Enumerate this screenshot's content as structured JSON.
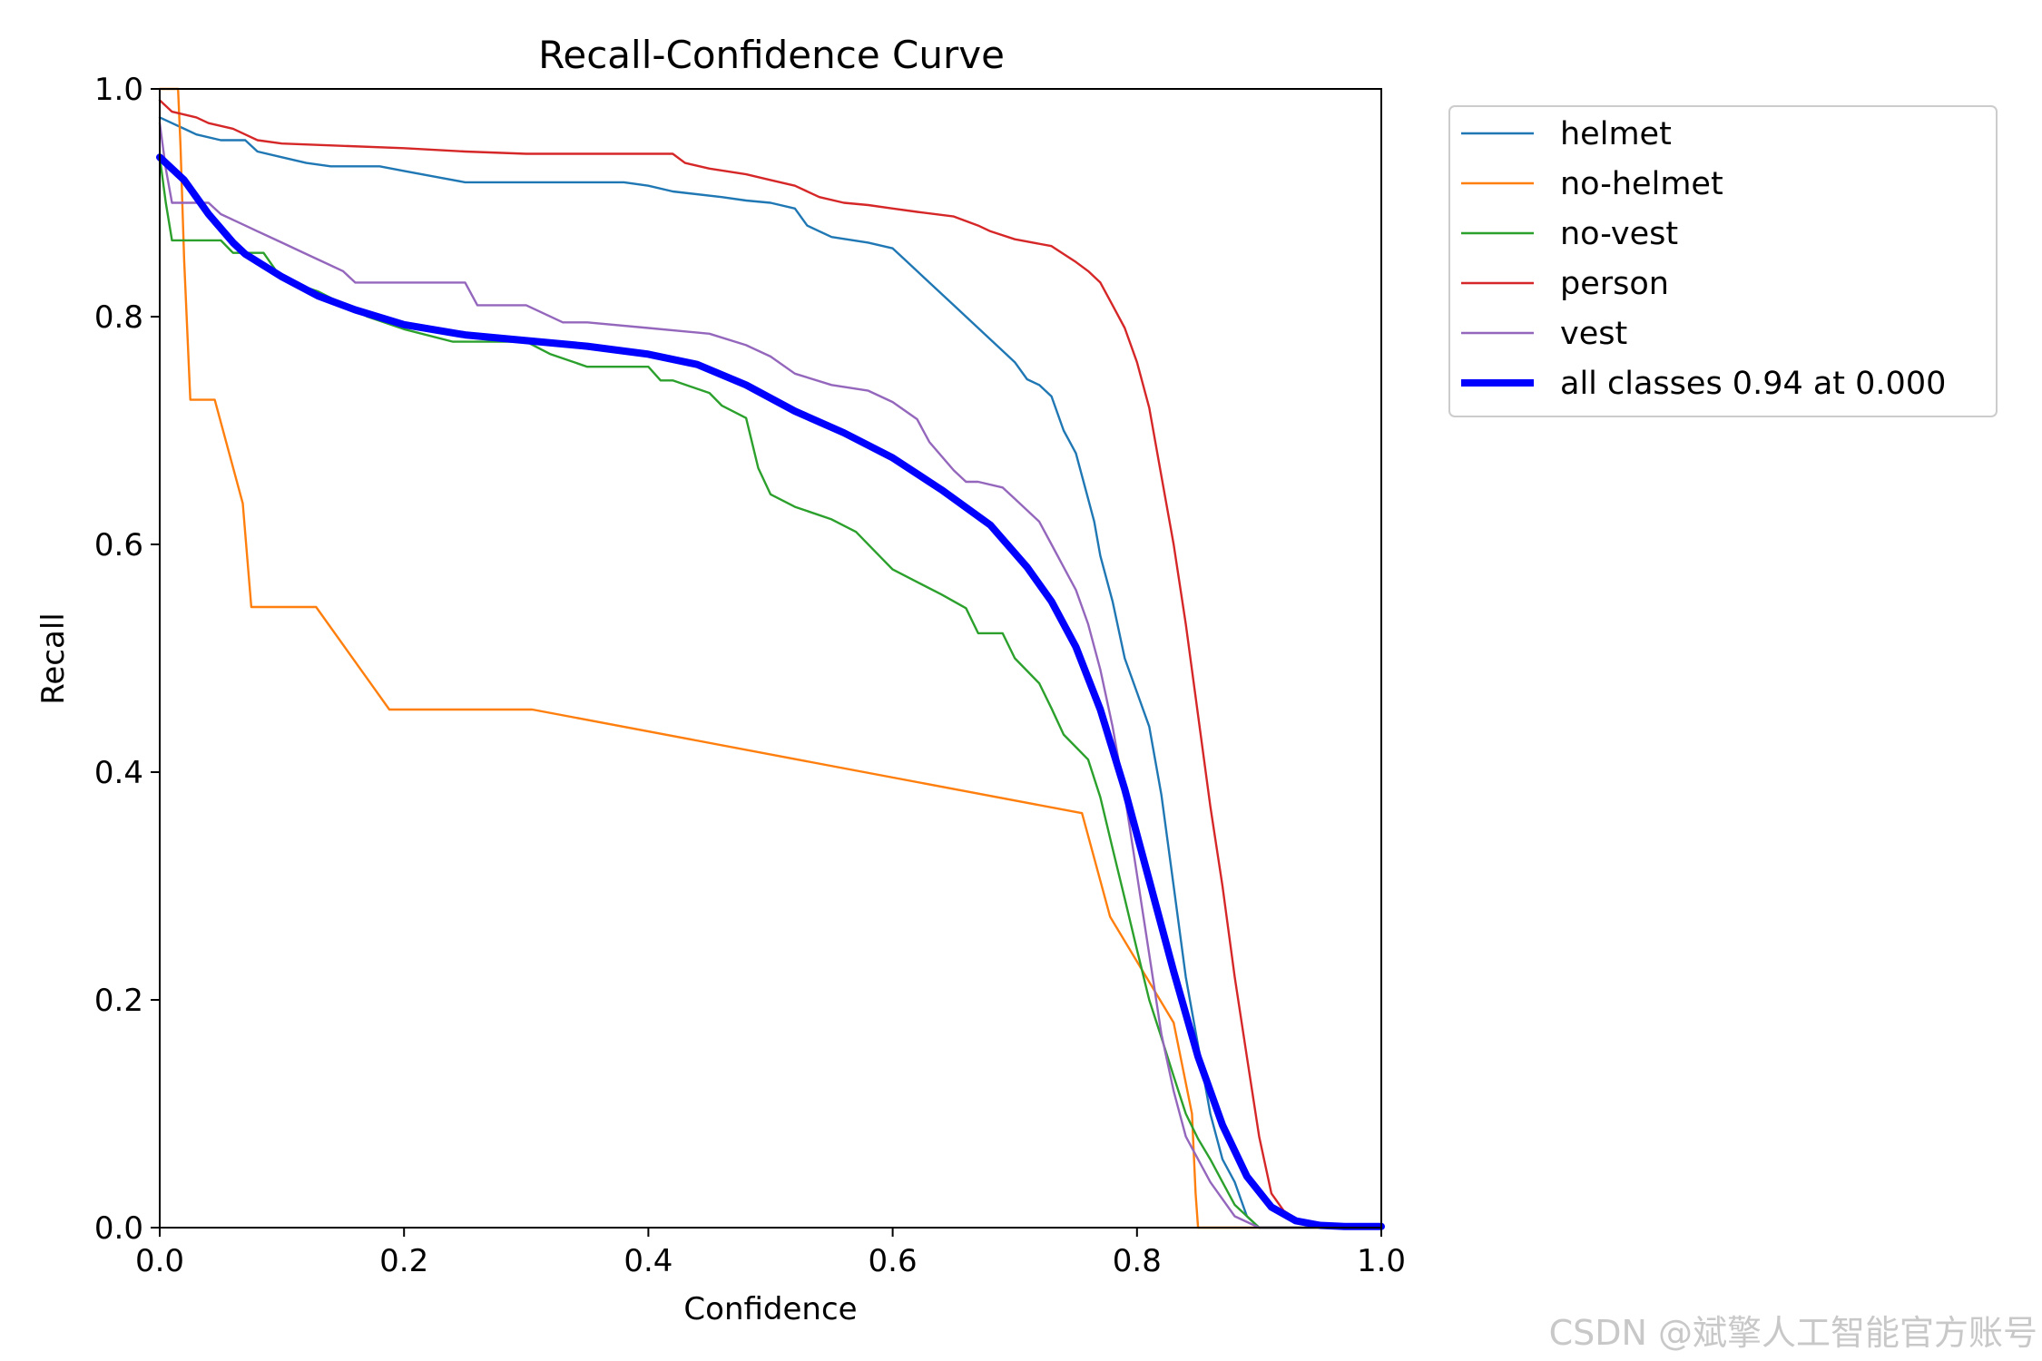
{
  "chart_data": {
    "type": "line",
    "title": "Recall-Confidence Curve",
    "xlabel": "Confidence",
    "ylabel": "Recall",
    "xlim": [
      0,
      1
    ],
    "ylim": [
      0,
      1
    ],
    "xticks": [
      "0.0",
      "0.2",
      "0.4",
      "0.6",
      "0.8",
      "1.0"
    ],
    "yticks": [
      "0.0",
      "0.2",
      "0.4",
      "0.6",
      "0.8",
      "1.0"
    ],
    "grid": false,
    "legend_position": "outside-top-right",
    "series": [
      {
        "name": "helmet",
        "color": "#1f77b4",
        "width": "thin",
        "x": [
          0,
          0.01,
          0.02,
          0.03,
          0.05,
          0.07,
          0.08,
          0.1,
          0.12,
          0.14,
          0.18,
          0.2,
          0.23,
          0.25,
          0.3,
          0.38,
          0.4,
          0.42,
          0.46,
          0.48,
          0.5,
          0.52,
          0.53,
          0.54,
          0.55,
          0.58,
          0.6,
          0.61,
          0.62,
          0.63,
          0.65,
          0.66,
          0.67,
          0.68,
          0.7,
          0.71,
          0.72,
          0.73,
          0.74,
          0.745,
          0.75,
          0.76,
          0.765,
          0.77,
          0.78,
          0.79,
          0.8,
          0.81,
          0.82,
          0.83,
          0.84,
          0.85,
          0.86,
          0.87,
          0.88,
          0.89,
          0.9,
          0.92,
          0.95,
          1.0
        ],
        "y": [
          0.975,
          0.97,
          0.965,
          0.96,
          0.955,
          0.955,
          0.945,
          0.94,
          0.935,
          0.932,
          0.932,
          0.928,
          0.922,
          0.918,
          0.918,
          0.918,
          0.915,
          0.91,
          0.905,
          0.902,
          0.9,
          0.895,
          0.88,
          0.875,
          0.87,
          0.865,
          0.86,
          0.85,
          0.84,
          0.83,
          0.81,
          0.8,
          0.79,
          0.78,
          0.76,
          0.745,
          0.74,
          0.73,
          0.7,
          0.69,
          0.68,
          0.64,
          0.62,
          0.59,
          0.55,
          0.5,
          0.47,
          0.44,
          0.38,
          0.3,
          0.22,
          0.16,
          0.1,
          0.06,
          0.04,
          0.01,
          0.0,
          0.0,
          0.0,
          0.0
        ]
      },
      {
        "name": "no-helmet",
        "color": "#ff7f0e",
        "width": "thin",
        "x": [
          0,
          0.01,
          0.015,
          0.017,
          0.02,
          0.025,
          0.045,
          0.068,
          0.075,
          0.128,
          0.188,
          0.305,
          0.755,
          0.778,
          0.83,
          0.845,
          0.848,
          0.85,
          1.0
        ],
        "y": [
          1.0,
          1.0,
          1.0,
          0.95,
          0.85,
          0.727,
          0.727,
          0.636,
          0.545,
          0.545,
          0.455,
          0.455,
          0.364,
          0.273,
          0.18,
          0.1,
          0.03,
          0.0,
          0.0
        ]
      },
      {
        "name": "no-vest",
        "color": "#2ca02c",
        "width": "thin",
        "x": [
          0,
          0.005,
          0.01,
          0.03,
          0.05,
          0.06,
          0.085,
          0.1,
          0.13,
          0.15,
          0.17,
          0.2,
          0.24,
          0.25,
          0.3,
          0.32,
          0.35,
          0.38,
          0.4,
          0.41,
          0.42,
          0.45,
          0.46,
          0.48,
          0.49,
          0.5,
          0.52,
          0.55,
          0.57,
          0.59,
          0.6,
          0.62,
          0.64,
          0.66,
          0.67,
          0.69,
          0.7,
          0.72,
          0.73,
          0.74,
          0.75,
          0.76,
          0.77,
          0.78,
          0.79,
          0.8,
          0.81,
          0.82,
          0.83,
          0.84,
          0.85,
          0.86,
          0.87,
          0.88,
          0.9,
          1.0
        ],
        "y": [
          0.94,
          0.9,
          0.867,
          0.867,
          0.867,
          0.856,
          0.856,
          0.833,
          0.822,
          0.811,
          0.8,
          0.789,
          0.778,
          0.778,
          0.778,
          0.767,
          0.756,
          0.756,
          0.756,
          0.744,
          0.744,
          0.733,
          0.722,
          0.711,
          0.667,
          0.644,
          0.633,
          0.622,
          0.611,
          0.589,
          0.578,
          0.567,
          0.556,
          0.544,
          0.522,
          0.522,
          0.5,
          0.478,
          0.456,
          0.433,
          0.422,
          0.411,
          0.378,
          0.333,
          0.289,
          0.244,
          0.2,
          0.167,
          0.133,
          0.1,
          0.078,
          0.06,
          0.04,
          0.02,
          0.0,
          0.0
        ]
      },
      {
        "name": "person",
        "color": "#d62728",
        "width": "thin",
        "x": [
          0,
          0.005,
          0.01,
          0.03,
          0.04,
          0.06,
          0.07,
          0.08,
          0.1,
          0.2,
          0.25,
          0.3,
          0.42,
          0.43,
          0.45,
          0.48,
          0.5,
          0.52,
          0.54,
          0.56,
          0.58,
          0.6,
          0.62,
          0.65,
          0.67,
          0.68,
          0.7,
          0.73,
          0.74,
          0.75,
          0.76,
          0.77,
          0.78,
          0.79,
          0.8,
          0.81,
          0.82,
          0.83,
          0.84,
          0.85,
          0.86,
          0.87,
          0.88,
          0.89,
          0.9,
          0.91,
          0.92,
          0.93,
          0.94,
          0.95,
          1.0
        ],
        "y": [
          0.99,
          0.985,
          0.98,
          0.975,
          0.97,
          0.965,
          0.96,
          0.955,
          0.952,
          0.948,
          0.945,
          0.943,
          0.943,
          0.935,
          0.93,
          0.925,
          0.92,
          0.915,
          0.905,
          0.9,
          0.898,
          0.895,
          0.892,
          0.888,
          0.88,
          0.875,
          0.868,
          0.862,
          0.855,
          0.848,
          0.84,
          0.83,
          0.81,
          0.79,
          0.76,
          0.72,
          0.66,
          0.6,
          0.53,
          0.45,
          0.37,
          0.3,
          0.22,
          0.15,
          0.08,
          0.03,
          0.015,
          0.008,
          0.004,
          0.002,
          0.001
        ]
      },
      {
        "name": "vest",
        "color": "#9467bd",
        "width": "thin",
        "x": [
          0,
          0.005,
          0.01,
          0.02,
          0.04,
          0.05,
          0.06,
          0.07,
          0.08,
          0.1,
          0.12,
          0.14,
          0.15,
          0.16,
          0.2,
          0.25,
          0.26,
          0.3,
          0.33,
          0.35,
          0.4,
          0.45,
          0.48,
          0.5,
          0.52,
          0.55,
          0.58,
          0.6,
          0.62,
          0.63,
          0.65,
          0.66,
          0.67,
          0.69,
          0.7,
          0.72,
          0.73,
          0.74,
          0.75,
          0.76,
          0.77,
          0.78,
          0.79,
          0.8,
          0.81,
          0.82,
          0.83,
          0.84,
          0.85,
          0.86,
          0.87,
          0.88,
          0.9,
          1.0
        ],
        "y": [
          0.97,
          0.93,
          0.9,
          0.9,
          0.9,
          0.89,
          0.885,
          0.88,
          0.875,
          0.865,
          0.855,
          0.845,
          0.84,
          0.83,
          0.83,
          0.83,
          0.81,
          0.81,
          0.795,
          0.795,
          0.79,
          0.785,
          0.775,
          0.765,
          0.75,
          0.74,
          0.735,
          0.725,
          0.71,
          0.69,
          0.665,
          0.655,
          0.655,
          0.65,
          0.64,
          0.62,
          0.6,
          0.58,
          0.56,
          0.53,
          0.49,
          0.44,
          0.38,
          0.31,
          0.24,
          0.17,
          0.12,
          0.08,
          0.06,
          0.04,
          0.025,
          0.01,
          0.0,
          0.0
        ]
      },
      {
        "name": "all classes 0.94 at 0.000",
        "color": "#0000ff",
        "width": "thick",
        "x": [
          0,
          0.02,
          0.04,
          0.06,
          0.07,
          0.1,
          0.13,
          0.16,
          0.2,
          0.25,
          0.3,
          0.35,
          0.4,
          0.44,
          0.48,
          0.52,
          0.56,
          0.6,
          0.64,
          0.68,
          0.71,
          0.73,
          0.75,
          0.77,
          0.79,
          0.81,
          0.83,
          0.85,
          0.87,
          0.89,
          0.91,
          0.93,
          0.95,
          0.97,
          1.0
        ],
        "y": [
          0.94,
          0.92,
          0.89,
          0.865,
          0.855,
          0.835,
          0.818,
          0.806,
          0.793,
          0.784,
          0.779,
          0.774,
          0.767,
          0.758,
          0.74,
          0.717,
          0.698,
          0.676,
          0.648,
          0.617,
          0.58,
          0.55,
          0.51,
          0.455,
          0.385,
          0.305,
          0.225,
          0.15,
          0.09,
          0.045,
          0.018,
          0.006,
          0.002,
          0.001,
          0.001
        ]
      }
    ]
  },
  "watermark": "CSDN @斌擎人工智能官方账号"
}
